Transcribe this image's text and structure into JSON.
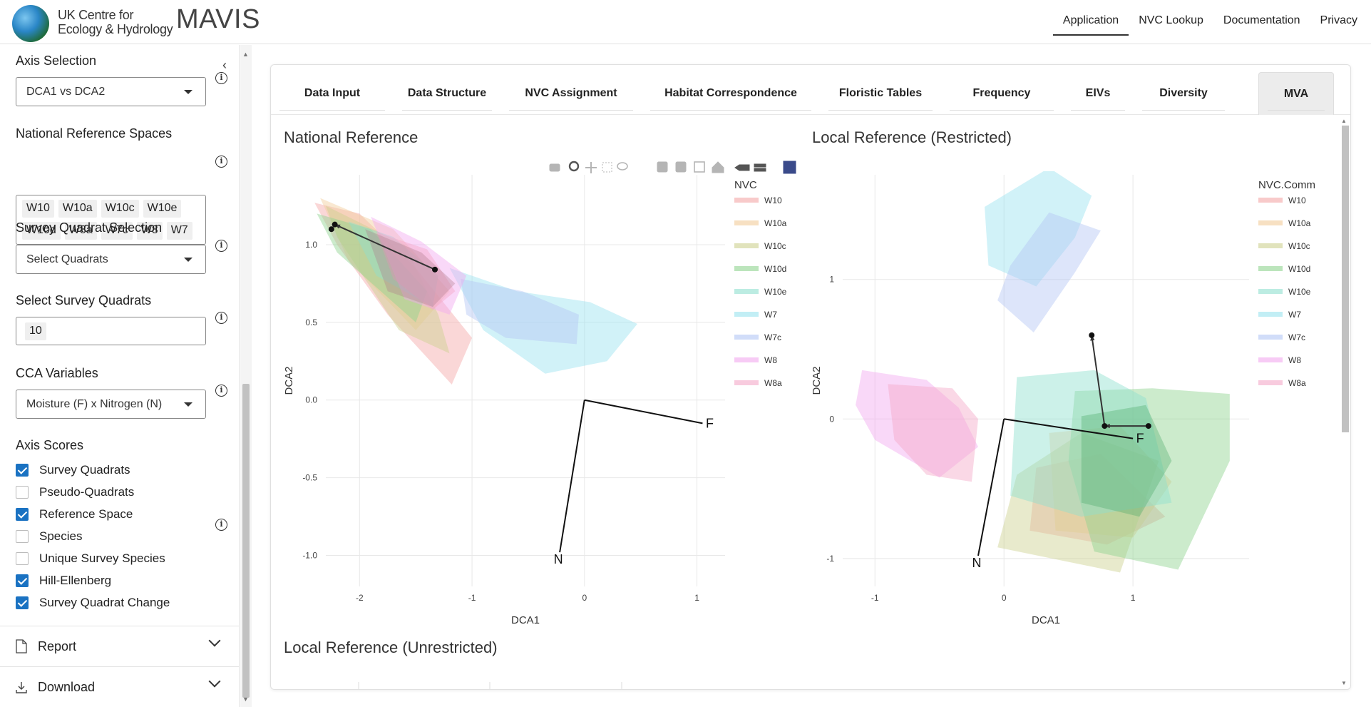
{
  "header": {
    "org_line1": "UK Centre for",
    "org_line2": "Ecology & Hydrology",
    "app_name": "MAVIS",
    "nav": [
      "Application",
      "NVC Lookup",
      "Documentation",
      "Privacy"
    ],
    "active_nav": "Application"
  },
  "sidebar": {
    "axis_selection": {
      "label": "Axis Selection",
      "value": "DCA1 vs DCA2"
    },
    "national_reference": {
      "label": "National Reference Spaces",
      "chips": [
        "W10",
        "W10a",
        "W10c",
        "W10e",
        "W10d",
        "W8a",
        "W7c",
        "W8",
        "W7"
      ]
    },
    "survey_quadrat_selection": {
      "label": "Survey Quadrat Selection",
      "value": "Select Quadrats"
    },
    "select_survey_quadrats": {
      "label": "Select Survey Quadrats",
      "chips": [
        "10"
      ]
    },
    "cca_variables": {
      "label": "CCA Variables",
      "value": "Moisture (F) x Nitrogen (N)"
    },
    "axis_scores": {
      "label": "Axis Scores",
      "items": [
        {
          "label": "Survey Quadrats",
          "checked": true
        },
        {
          "label": "Pseudo-Quadrats",
          "checked": false
        },
        {
          "label": "Reference Space",
          "checked": true
        },
        {
          "label": "Species",
          "checked": false
        },
        {
          "label": "Unique Survey Species",
          "checked": false
        },
        {
          "label": "Hill-Ellenberg",
          "checked": true
        },
        {
          "label": "Survey Quadrat Change",
          "checked": true
        }
      ]
    },
    "report_label": "Report",
    "download_label": "Download"
  },
  "tabs": [
    "Data Input",
    "Data Structure",
    "NVC Assignment",
    "Habitat Correspondence",
    "Floristic Tables",
    "Frequency",
    "EIVs",
    "Diversity",
    "MVA"
  ],
  "active_tab": "MVA",
  "plots": {
    "national": {
      "title": "National Reference",
      "xlabel": "DCA1",
      "ylabel": "DCA2",
      "legend_title": "NVC"
    },
    "local_restricted": {
      "title": "Local Reference (Restricted)",
      "xlabel": "DCA1",
      "ylabel": "DCA2",
      "legend_title": "NVC.Comm"
    },
    "local_unrestricted": {
      "title": "Local Reference (Unrestricted)"
    }
  },
  "chart_data": [
    {
      "type": "scatter",
      "title": "National Reference",
      "xlabel": "DCA1",
      "ylabel": "DCA2",
      "xlim": [
        -2.3,
        1.25
      ],
      "ylim": [
        -1.2,
        1.45
      ],
      "xticks": [
        -2,
        -1,
        0,
        1
      ],
      "yticks": [
        -1.0,
        -0.5,
        0.0,
        0.5,
        1.0
      ],
      "legend": [
        "W10",
        "W10a",
        "W10c",
        "W10d",
        "W10e",
        "W7",
        "W7c",
        "W8",
        "W8a"
      ],
      "colors": {
        "W10": "#f4a6a6",
        "W10a": "#f2cc99",
        "W10c": "#cdd08f",
        "W10d": "#8fd38f",
        "W10e": "#8fdfcf",
        "W7": "#99e3ef",
        "W7c": "#b3c6f5",
        "W8": "#f2a8ef",
        "W8a": "#f4a8c8"
      },
      "env_vectors": [
        {
          "label": "F",
          "x": 1.05,
          "y": -0.15
        },
        {
          "label": "N",
          "x": -0.22,
          "y": -0.98
        }
      ],
      "survey_change": [
        {
          "from": [
            -1.33,
            0.84
          ],
          "to": [
            -2.22,
            1.13
          ]
        }
      ],
      "survey_points": [
        {
          "x": -2.25,
          "y": 1.1
        },
        {
          "x": -2.22,
          "y": 1.13
        },
        {
          "x": -1.33,
          "y": 0.84
        }
      ]
    },
    {
      "type": "scatter",
      "title": "Local Reference (Restricted)",
      "xlabel": "DCA1",
      "ylabel": "DCA2",
      "xlim": [
        -1.25,
        1.9
      ],
      "ylim": [
        -1.2,
        1.75
      ],
      "xticks": [
        -1,
        0,
        1
      ],
      "yticks": [
        -1,
        0,
        1
      ],
      "legend": [
        "W10",
        "W10a",
        "W10c",
        "W10d",
        "W10e",
        "W7",
        "W7c",
        "W8",
        "W8a"
      ],
      "colors": {
        "W10": "#f4a6a6",
        "W10a": "#f2cc99",
        "W10c": "#cdd08f",
        "W10d": "#8fd38f",
        "W10e": "#8fdfcf",
        "W7": "#99e3ef",
        "W7c": "#b3c6f5",
        "W8": "#f2a8ef",
        "W8a": "#f4a8c8"
      },
      "env_vectors": [
        {
          "label": "F",
          "x": 1.0,
          "y": -0.14
        },
        {
          "label": "N",
          "x": -0.2,
          "y": -0.98
        }
      ],
      "survey_change": [
        {
          "from": [
            0.78,
            -0.05
          ],
          "to": [
            0.68,
            0.6
          ]
        },
        {
          "from": [
            1.12,
            -0.05
          ],
          "to": [
            0.78,
            -0.05
          ]
        }
      ],
      "survey_points": [
        {
          "x": 0.68,
          "y": 0.6
        },
        {
          "x": 0.78,
          "y": -0.05
        },
        {
          "x": 1.12,
          "y": -0.05
        }
      ]
    }
  ]
}
